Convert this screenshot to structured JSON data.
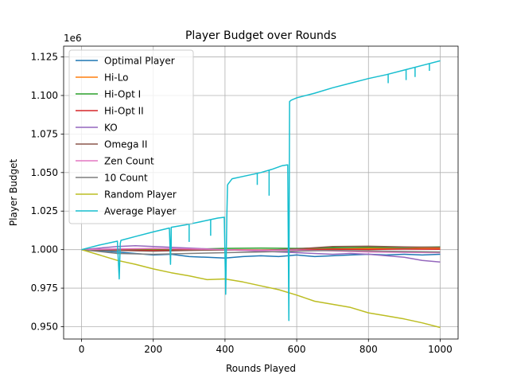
{
  "chart_data": {
    "type": "line",
    "title": "Player Budget over Rounds",
    "xlabel": "Rounds Played",
    "ylabel": "Player Budget",
    "y_offset_label": "1e6",
    "xlim": [
      -50,
      1050
    ],
    "ylim": [
      942000,
      1132000
    ],
    "x_ticks": [
      0,
      200,
      400,
      600,
      800,
      1000
    ],
    "y_ticks": [
      950000,
      975000,
      1000000,
      1025000,
      1050000,
      1075000,
      1100000,
      1125000
    ],
    "y_tick_labels": [
      "0.950",
      "0.975",
      "1.000",
      "1.025",
      "1.050",
      "1.075",
      "1.100",
      "1.125"
    ],
    "grid": true,
    "legend_position": "upper-left",
    "series": [
      {
        "name": "Optimal Player",
        "color": "#1f77b4",
        "x": [
          0,
          50,
          100,
          150,
          200,
          250,
          300,
          350,
          400,
          450,
          500,
          550,
          600,
          650,
          700,
          750,
          800,
          850,
          900,
          950,
          1000
        ],
        "y": [
          1000000,
          999000,
          998500,
          997500,
          996500,
          997000,
          995500,
          995000,
          994500,
          995500,
          996000,
          995500,
          996500,
          995500,
          996000,
          996500,
          997000,
          996500,
          997000,
          996500,
          997000
        ]
      },
      {
        "name": "Hi-Lo",
        "color": "#ff7f0e",
        "x": [
          0,
          100,
          200,
          300,
          400,
          500,
          600,
          700,
          800,
          900,
          1000
        ],
        "y": [
          1000000,
          999500,
          999800,
          1000200,
          1000000,
          999800,
          1000200,
          1000500,
          1000800,
          1000600,
          1001000
        ]
      },
      {
        "name": "Hi-Opt I",
        "color": "#2ca02c",
        "x": [
          0,
          100,
          200,
          300,
          400,
          500,
          600,
          700,
          800,
          900,
          1000
        ],
        "y": [
          1000000,
          1000200,
          1000500,
          1000300,
          1000800,
          1001000,
          1000800,
          1001200,
          1001500,
          1001400,
          1001800
        ]
      },
      {
        "name": "Hi-Opt II",
        "color": "#d62728",
        "x": [
          0,
          100,
          200,
          300,
          400,
          500,
          600,
          700,
          800,
          900,
          1000
        ],
        "y": [
          1000000,
          999800,
          999500,
          999800,
          1000000,
          999700,
          1000000,
          1000300,
          1000100,
          1000400,
          1000200
        ]
      },
      {
        "name": "KO",
        "color": "#9467bd",
        "x": [
          0,
          50,
          100,
          150,
          200,
          250,
          300,
          350,
          400,
          450,
          500,
          550,
          600,
          650,
          700,
          750,
          800,
          850,
          900,
          950,
          1000
        ],
        "y": [
          1000000,
          1001000,
          1002000,
          1002500,
          1002000,
          1001500,
          1001000,
          1000500,
          1000000,
          999500,
          999000,
          998500,
          998000,
          997500,
          997000,
          997500,
          997000,
          996000,
          995000,
          993000,
          992000
        ]
      },
      {
        "name": "Omega II",
        "color": "#8c564b",
        "x": [
          0,
          100,
          200,
          300,
          400,
          500,
          600,
          700,
          800,
          900,
          1000
        ],
        "y": [
          1000000,
          999500,
          999000,
          999500,
          999800,
          999500,
          1000500,
          1002000,
          1002200,
          1001800,
          1001500
        ]
      },
      {
        "name": "Zen Count",
        "color": "#e377c2",
        "x": [
          0,
          100,
          200,
          300,
          400,
          500,
          600,
          700,
          800,
          900,
          1000
        ],
        "y": [
          1000000,
          1000500,
          1000800,
          1000500,
          1000000,
          999500,
          999800,
          999200,
          998500,
          998200,
          998000
        ]
      },
      {
        "name": "10 Count",
        "color": "#7f7f7f",
        "x": [
          0,
          100,
          200,
          300,
          400,
          500,
          600,
          700,
          800,
          900,
          1000
        ],
        "y": [
          1000000,
          997500,
          997000,
          997500,
          998000,
          998500,
          999000,
          999500,
          999200,
          998800,
          998500
        ]
      },
      {
        "name": "Random Player",
        "color": "#bcbd22",
        "x": [
          0,
          50,
          100,
          150,
          200,
          250,
          300,
          350,
          400,
          450,
          500,
          550,
          600,
          650,
          700,
          750,
          800,
          850,
          900,
          950,
          1000
        ],
        "y": [
          1000000,
          996500,
          993000,
          990500,
          987500,
          985000,
          983000,
          980500,
          981000,
          979000,
          976500,
          974000,
          970500,
          966500,
          964500,
          962500,
          959000,
          957000,
          955000,
          952500,
          949500
        ]
      },
      {
        "name": "Average Player",
        "color": "#17becf",
        "x": [
          0,
          50,
          100,
          105,
          108,
          110,
          150,
          200,
          245,
          248,
          250,
          300,
          350,
          380,
          398,
          402,
          405,
          407,
          410,
          420,
          450,
          480,
          500,
          530,
          560,
          575,
          578,
          580,
          582,
          585,
          600,
          650,
          700,
          750,
          800,
          850,
          900,
          950,
          1000
        ],
        "y": [
          1000000,
          1003000,
          1005500,
          981000,
          1004000,
          1006000,
          1008500,
          1011500,
          1014000,
          990500,
          1014500,
          1016500,
          1019000,
          1020500,
          1021000,
          971000,
          1021000,
          1042000,
          1043000,
          1046000,
          1047500,
          1049000,
          1050000,
          1052000,
          1054500,
          1055000,
          954000,
          1096000,
          1096500,
          1097000,
          1098500,
          1101500,
          1105000,
          1108000,
          1111000,
          1113500,
          1116500,
          1119500,
          1122500
        ],
        "dips": [
          {
            "x": 250,
            "y": 1000000
          },
          {
            "x": 300,
            "y": 1005000
          },
          {
            "x": 360,
            "y": 1009000
          },
          {
            "x": 490,
            "y": 1042000
          },
          {
            "x": 523,
            "y": 1035000
          },
          {
            "x": 855,
            "y": 1108000
          },
          {
            "x": 905,
            "y": 1110000
          },
          {
            "x": 930,
            "y": 1112000
          },
          {
            "x": 970,
            "y": 1116000
          }
        ]
      }
    ]
  }
}
